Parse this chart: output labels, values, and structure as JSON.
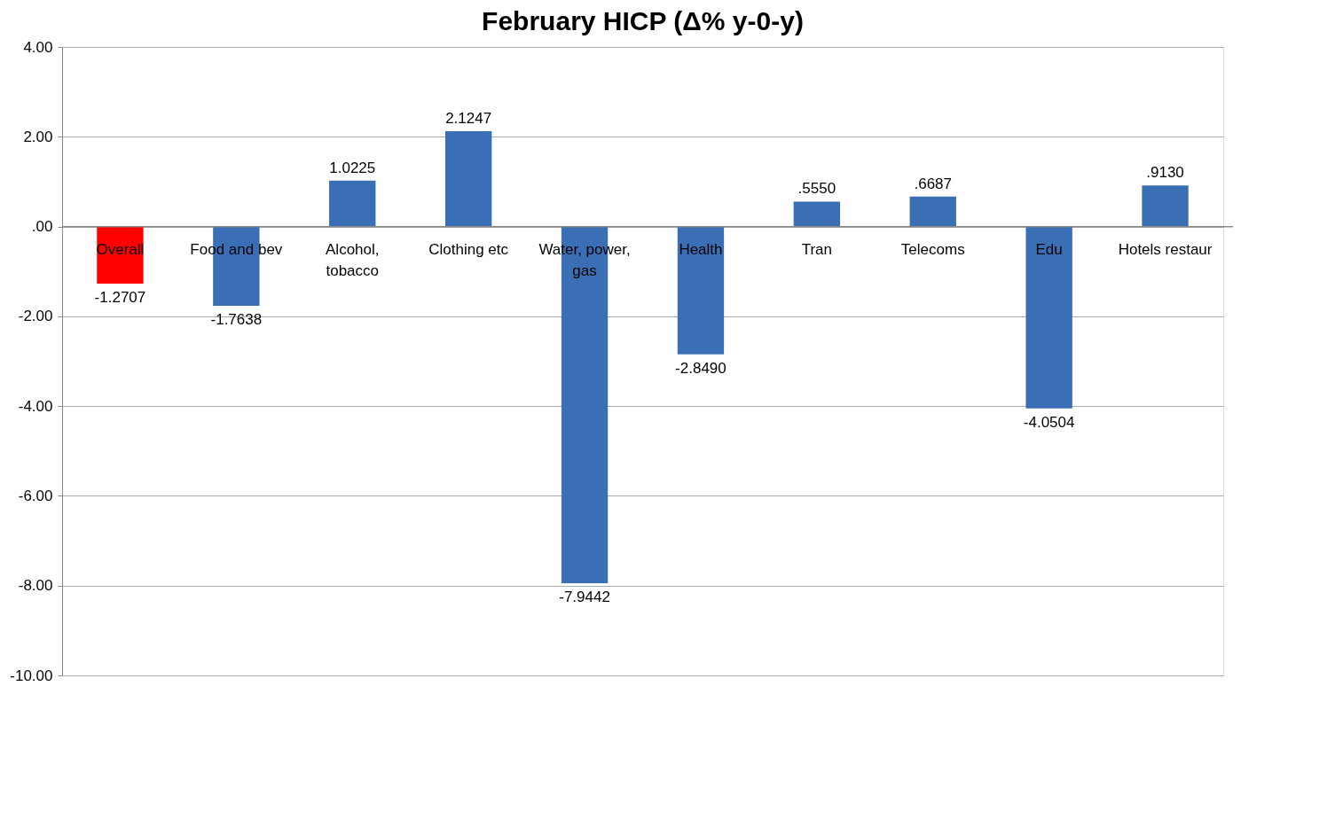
{
  "chart_data": {
    "type": "bar",
    "title": "February HICP (Δ% y-0-y)",
    "categories": [
      "Overall",
      "Food and bev",
      "Alcohol, tobacco",
      "Clothing etc",
      "Water, power, gas",
      "Health",
      "Tran",
      "Telecoms",
      "Edu",
      "Hotels restaur"
    ],
    "values": [
      -1.2707,
      -1.7638,
      1.0225,
      2.1247,
      -7.9442,
      -2.849,
      0.555,
      0.6687,
      -4.0504,
      0.913
    ],
    "value_labels": [
      "-1.2707",
      "-1.7638",
      "1.0225",
      "2.1247",
      "-7.9442",
      "-2.8490",
      ".5550",
      ".6687",
      "-4.0504",
      ".9130"
    ],
    "colors": [
      "#ff0000",
      "#3a6fb6",
      "#3a6fb6",
      "#3a6fb6",
      "#3a6fb6",
      "#3a6fb6",
      "#3a6fb6",
      "#3a6fb6",
      "#3a6fb6",
      "#3a6fb6"
    ],
    "ylim": [
      -10,
      4
    ],
    "yticks": [
      {
        "value": 4,
        "label": "4.00"
      },
      {
        "value": 2,
        "label": "2.00"
      },
      {
        "value": 0,
        "label": ".00"
      },
      {
        "value": -2,
        "label": "-2.00"
      },
      {
        "value": -4,
        "label": "-4.00"
      },
      {
        "value": -6,
        "label": "-6.00"
      },
      {
        "value": -8,
        "label": "-8.00"
      },
      {
        "value": -10,
        "label": "-10.00"
      }
    ],
    "grid": "y"
  }
}
